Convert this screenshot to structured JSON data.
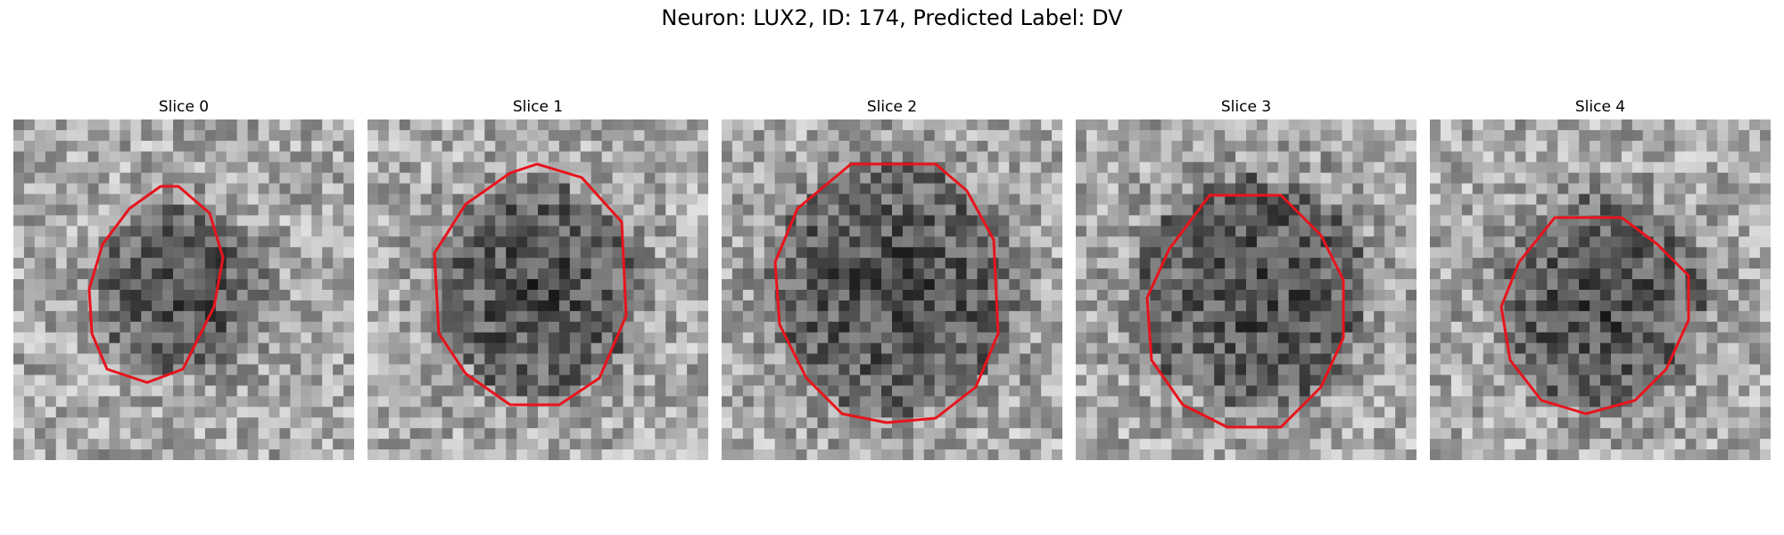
{
  "figure": {
    "title": "Neuron: LUX2, ID: 174, Predicted Label: DV",
    "contour_color": "#e8141c",
    "colormap": "grayscale"
  },
  "panels": [
    {
      "title": "Slice 0"
    },
    {
      "title": "Slice 1"
    },
    {
      "title": "Slice 2"
    },
    {
      "title": "Slice 3"
    },
    {
      "title": "Slice 4"
    }
  ]
}
